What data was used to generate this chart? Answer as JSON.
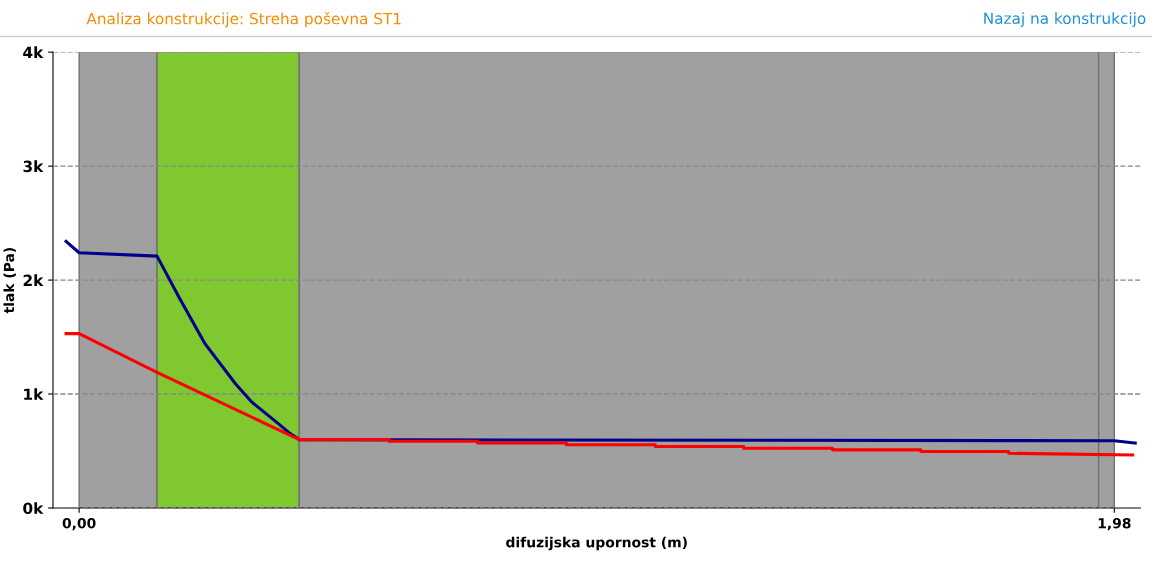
{
  "chart_data": {
    "type": "line",
    "title": "Analiza konstrukcije: Streha poševna ST1",
    "annotations": [
      "Nazaj na konstrukcijo"
    ],
    "xlabel": "difuzijska upornost (m)",
    "ylabel": "tlak (Pa)",
    "xlim": [
      -0.05,
      2.03
    ],
    "xticks": [
      {
        "value": 0,
        "label": "0,00"
      },
      {
        "value": 1.98,
        "label": "1,98"
      }
    ],
    "ylim": [
      0,
      4000
    ],
    "yticks": [
      {
        "value": 0,
        "label": "0k"
      },
      {
        "value": 1000,
        "label": "1k"
      },
      {
        "value": 2000,
        "label": "2k"
      },
      {
        "value": 3000,
        "label": "3k"
      },
      {
        "value": 4000,
        "label": "4k"
      }
    ],
    "grid": "y",
    "legend": false,
    "bands": [
      {
        "axis": "x",
        "from": 0,
        "to": 0.149,
        "color": "#a0a0a0"
      },
      {
        "axis": "x",
        "from": 0.149,
        "to": 0.421,
        "color": "#80c830"
      },
      {
        "axis": "x",
        "from": 0.421,
        "to": 1.95,
        "color": "#a0a0a0"
      },
      {
        "axis": "x",
        "from": 1.95,
        "to": 1.98,
        "color": "#a0a0a0"
      }
    ],
    "series": [
      {
        "color": "#00008b",
        "x": [
          -0.025,
          0,
          0.149,
          0.191,
          0.241,
          0.299,
          0.33,
          0.381,
          0.403,
          0.421,
          1.98,
          2.02
        ],
        "values": [
          2340,
          2240,
          2210,
          1850,
          1440,
          1090,
          930,
          740,
          655,
          600,
          590,
          570
        ]
      },
      {
        "color": "#ff0000",
        "x": [
          -0.025,
          0,
          0.149,
          0.421,
          0.593,
          0.593,
          0.762,
          0.762,
          0.932,
          0.932,
          1.102,
          1.102,
          1.271,
          1.271,
          1.441,
          1.441,
          1.61,
          1.61,
          1.778,
          1.778,
          2.015
        ],
        "values": [
          1530,
          1530,
          1190,
          600,
          600,
          585,
          585,
          570,
          570,
          555,
          555,
          540,
          540,
          525,
          525,
          510,
          510,
          495,
          495,
          480,
          465
        ]
      }
    ]
  }
}
